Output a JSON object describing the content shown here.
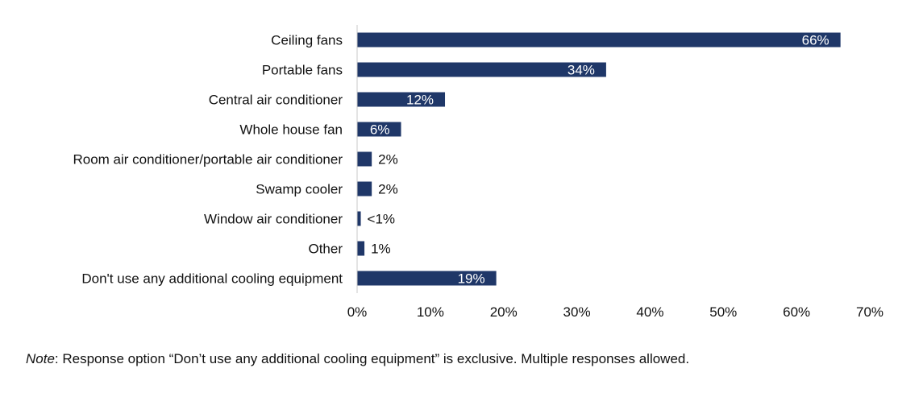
{
  "chart_data": {
    "type": "bar",
    "orientation": "horizontal",
    "categories": [
      "Ceiling fans",
      "Portable fans",
      "Central air conditioner",
      "Whole house fan",
      "Room air conditioner/portable air conditioner",
      "Swamp cooler",
      "Window air conditioner",
      "Other",
      "Don't use any additional cooling equipment"
    ],
    "values": [
      66,
      34,
      12,
      6,
      2,
      2,
      0.5,
      1,
      19
    ],
    "data_labels": [
      "66%",
      "34%",
      "12%",
      "6%",
      "2%",
      "2%",
      "<1%",
      "1%",
      "19%"
    ],
    "xlim": [
      0,
      70
    ],
    "x_ticks": [
      "0%",
      "10%",
      "20%",
      "30%",
      "40%",
      "50%",
      "60%",
      "70%"
    ],
    "grid": false,
    "bar_color": "#1f3768",
    "inside_label_color": "#ffffff",
    "outside_label_color": "#111111"
  },
  "note": {
    "prefix": "Note",
    "text": ": Response option “Don’t use any additional cooling equipment” is exclusive. Multiple responses allowed."
  }
}
